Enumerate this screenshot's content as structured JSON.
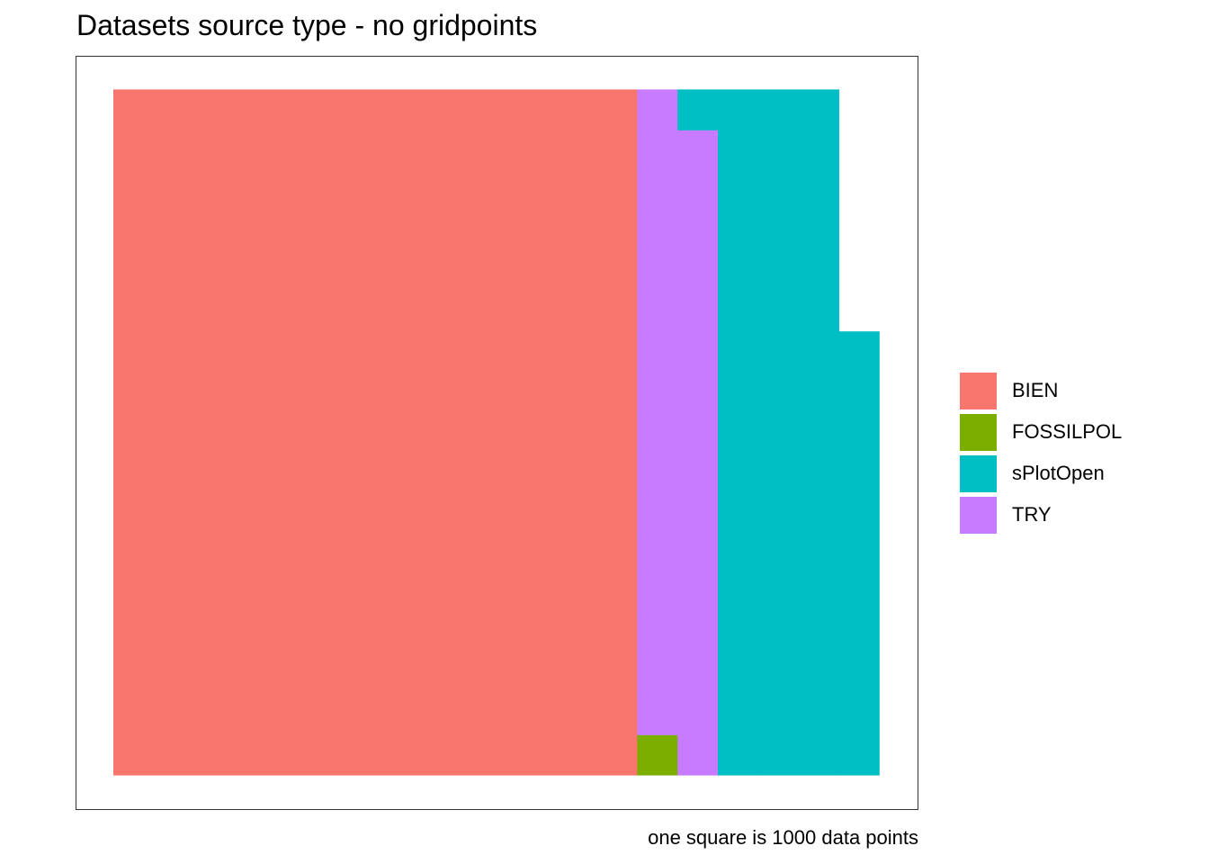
{
  "chart_data": {
    "type": "waffle",
    "title": "Datasets source type - no gridpoints",
    "caption": "one square is 1000 data points",
    "grid_rows": 17,
    "fill_order": "column-wise, bottom to top",
    "series": [
      {
        "name": "BIEN",
        "value": 221,
        "color": "#F8766D"
      },
      {
        "name": "FOSSILPOL",
        "value": 1,
        "color": "#7CAE00"
      },
      {
        "name": "TRY",
        "value": 32,
        "color": "#C77CFF"
      },
      {
        "name": "sPlotOpen",
        "value": 63,
        "color": "#00BFC4"
      }
    ],
    "legend": {
      "position": "right",
      "entries": [
        {
          "label": "BIEN",
          "color": "#F8766D"
        },
        {
          "label": "FOSSILPOL",
          "color": "#7CAE00"
        },
        {
          "label": "sPlotOpen",
          "color": "#00BFC4"
        },
        {
          "label": "TRY",
          "color": "#C77CFF"
        }
      ]
    }
  }
}
